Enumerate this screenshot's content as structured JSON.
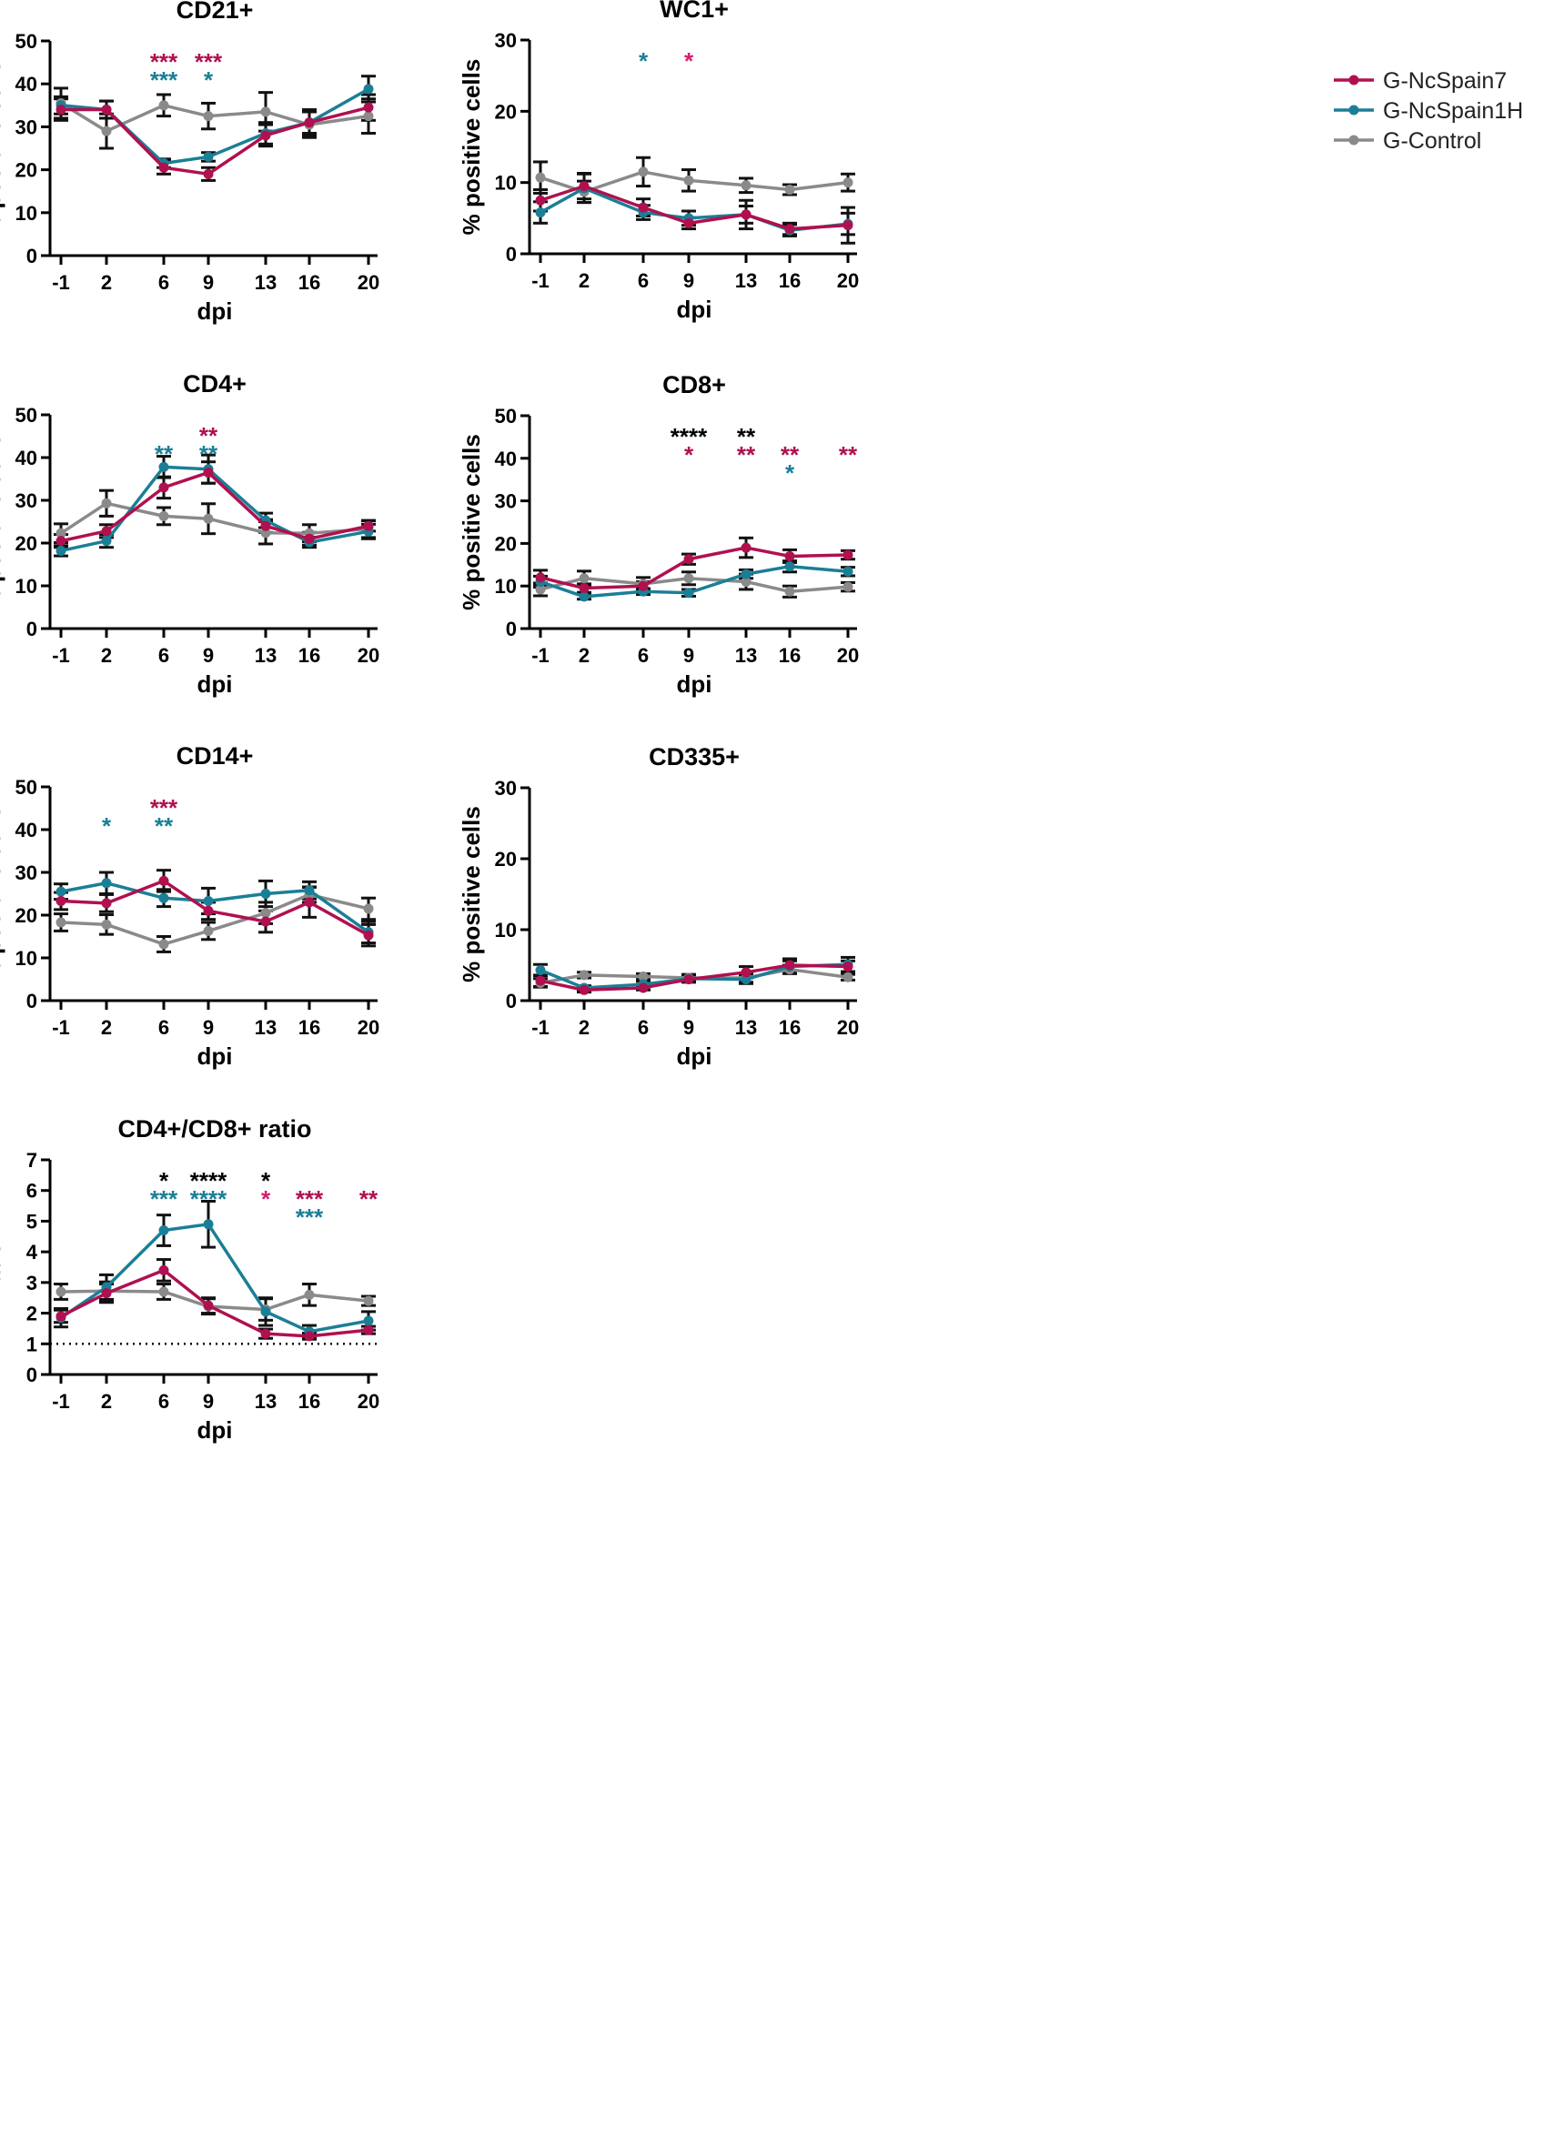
{
  "legend": [
    {
      "label": "G-NcSpain7",
      "color": "#b0104f"
    },
    {
      "label": "G-NcSpain1H",
      "color": "#1a7f96"
    },
    {
      "label": "G-Control",
      "color": "#8a8a8a"
    }
  ],
  "chart_data": [
    {
      "type": "line",
      "title": "CD21+",
      "xlabel": "dpi",
      "ylabel": "% positive cells",
      "ylim": [
        0,
        50
      ],
      "yticks": [
        0,
        10,
        20,
        30,
        40,
        50
      ],
      "x": [
        -1,
        2,
        6,
        9,
        13,
        16,
        20
      ],
      "xtick_labels": [
        "-1",
        "2",
        "6",
        "9",
        "13",
        "16",
        "20"
      ],
      "series": [
        {
          "name": "G-NcSpain7",
          "values": [
            34,
            34,
            20.5,
            19,
            28,
            31,
            34.5
          ],
          "errors": [
            2.5,
            2,
            1.5,
            1.5,
            2.5,
            3,
            3
          ]
        },
        {
          "name": "G-NcSpain1H",
          "values": [
            35,
            34,
            21.5,
            23,
            28.5,
            31,
            38.8
          ],
          "errors": [
            2,
            2,
            1,
            1,
            2.5,
            2.5,
            3
          ]
        },
        {
          "name": "G-Control",
          "values": [
            35.5,
            29,
            35,
            32.5,
            33.5,
            30.5,
            32.5
          ],
          "errors": [
            3.5,
            4,
            2.5,
            3,
            4.5,
            3,
            4
          ]
        }
      ],
      "annotations": [
        {
          "x": 6,
          "level": 0,
          "text": "***",
          "color": "#b0104f"
        },
        {
          "x": 6,
          "level": 1,
          "text": "***",
          "color": "#1a7f96"
        },
        {
          "x": 9,
          "level": 0,
          "text": "***",
          "color": "#b0104f"
        },
        {
          "x": 9,
          "level": 1,
          "text": "*",
          "color": "#1a7f96"
        }
      ]
    },
    {
      "type": "line",
      "title": "WC1+",
      "xlabel": "dpi",
      "ylabel": "% positive cells",
      "ylim": [
        0,
        30
      ],
      "yticks": [
        0,
        10,
        20,
        30
      ],
      "x": [
        -1,
        2,
        6,
        9,
        13,
        16,
        20
      ],
      "xtick_labels": [
        "-1",
        "2",
        "6",
        "9",
        "13",
        "16",
        "20"
      ],
      "series": [
        {
          "name": "G-NcSpain7",
          "values": [
            7.5,
            9.5,
            6.5,
            4.3,
            5.5,
            3.5,
            4
          ],
          "errors": [
            1.5,
            1.8,
            1.2,
            0.8,
            1.2,
            0.8,
            2.5
          ]
        },
        {
          "name": "G-NcSpain1H",
          "values": [
            5.8,
            9.2,
            5.8,
            5,
            5.5,
            3.3,
            4.2
          ],
          "errors": [
            1.5,
            2,
            1,
            1,
            2,
            0.8,
            1.5
          ]
        },
        {
          "name": "G-Control",
          "values": [
            10.7,
            8.7,
            11.5,
            10.3,
            9.6,
            9,
            10
          ],
          "errors": [
            2.2,
            1.5,
            2,
            1.5,
            1,
            0.7,
            1.2
          ]
        }
      ],
      "annotations": [
        {
          "x": 6,
          "level": 0,
          "text": "*",
          "color": "#1a7f96"
        },
        {
          "x": 9,
          "level": 0,
          "text": "*",
          "color": "#d61b6e"
        }
      ]
    },
    {
      "type": "line",
      "title": "CD4+",
      "xlabel": "dpi",
      "ylabel": "% positive cells",
      "ylim": [
        0,
        50
      ],
      "yticks": [
        0,
        10,
        20,
        30,
        40,
        50
      ],
      "x": [
        -1,
        2,
        6,
        9,
        13,
        16,
        20
      ],
      "xtick_labels": [
        "-1",
        "2",
        "6",
        "9",
        "13",
        "16",
        "20"
      ],
      "series": [
        {
          "name": "G-NcSpain7",
          "values": [
            20.5,
            22.8,
            33,
            36.5,
            24,
            21,
            24
          ],
          "errors": [
            1.5,
            1.5,
            2.5,
            2.5,
            1.5,
            1.5,
            1.2
          ]
        },
        {
          "name": "G-NcSpain1H",
          "values": [
            18.2,
            20.5,
            37.8,
            37.3,
            25.3,
            20.2,
            22.7
          ],
          "errors": [
            1.2,
            1.5,
            2.5,
            3.3,
            1.7,
            1.2,
            1.7
          ]
        },
        {
          "name": "G-Control",
          "values": [
            22.3,
            29.3,
            26.3,
            25.7,
            22.4,
            22.3,
            23.3
          ],
          "errors": [
            2.2,
            3,
            2,
            3.5,
            2.6,
            2,
            2
          ]
        }
      ],
      "annotations": [
        {
          "x": 6,
          "level": 1,
          "text": "**",
          "color": "#1a7f96"
        },
        {
          "x": 9,
          "level": 0,
          "text": "**",
          "color": "#b0104f"
        },
        {
          "x": 9,
          "level": 1,
          "text": "**",
          "color": "#1a7f96"
        }
      ]
    },
    {
      "type": "line",
      "title": "CD8+",
      "xlabel": "dpi",
      "ylabel": "% positive cells",
      "ylim": [
        0,
        50
      ],
      "yticks": [
        0,
        10,
        20,
        30,
        40,
        50
      ],
      "x": [
        -1,
        2,
        6,
        9,
        13,
        16,
        20
      ],
      "xtick_labels": [
        "-1",
        "2",
        "6",
        "9",
        "13",
        "16",
        "20"
      ],
      "series": [
        {
          "name": "G-NcSpain7",
          "values": [
            12,
            9.5,
            10,
            16.3,
            19,
            17,
            17.3
          ],
          "errors": [
            1.7,
            1,
            1,
            1.2,
            2.3,
            1.5,
            1
          ]
        },
        {
          "name": "G-NcSpain1H",
          "values": [
            11,
            7.5,
            8.7,
            8.4,
            12.8,
            14.6,
            13.4
          ],
          "errors": [
            1.3,
            0.6,
            0.7,
            0.8,
            1,
            1.3,
            1
          ]
        },
        {
          "name": "G-Control",
          "values": [
            9.2,
            11.8,
            10.5,
            11.8,
            11,
            8.7,
            9.8
          ],
          "errors": [
            1.5,
            1.7,
            1.5,
            1.5,
            1.8,
            1.3,
            1
          ]
        }
      ],
      "annotations": [
        {
          "x": 9,
          "level": 0,
          "text": "****",
          "color": "#000000"
        },
        {
          "x": 9,
          "level": 1,
          "text": "*",
          "color": "#b0104f"
        },
        {
          "x": 13,
          "level": 0,
          "text": "**",
          "color": "#000000"
        },
        {
          "x": 13,
          "level": 1,
          "text": "**",
          "color": "#b0104f"
        },
        {
          "x": 16,
          "level": 1,
          "text": "**",
          "color": "#b0104f"
        },
        {
          "x": 16,
          "level": 2,
          "text": "*",
          "color": "#1a7f96"
        },
        {
          "x": 20,
          "level": 1,
          "text": "**",
          "color": "#b0104f"
        }
      ]
    },
    {
      "type": "line",
      "title": "CD14+",
      "xlabel": "dpi",
      "ylabel": "% positive cells",
      "ylim": [
        0,
        50
      ],
      "yticks": [
        0,
        10,
        20,
        30,
        40,
        50
      ],
      "x": [
        -1,
        2,
        6,
        9,
        13,
        16,
        20
      ],
      "xtick_labels": [
        "-1",
        "2",
        "6",
        "9",
        "13",
        "16",
        "20"
      ],
      "series": [
        {
          "name": "G-NcSpain7",
          "values": [
            23.3,
            22.8,
            28,
            21,
            18.5,
            23,
            15.3
          ],
          "errors": [
            2,
            2,
            2.5,
            2,
            2.5,
            3.5,
            2.5
          ]
        },
        {
          "name": "G-NcSpain1H",
          "values": [
            25.5,
            27.5,
            24,
            23.3,
            25,
            25.8,
            16
          ],
          "errors": [
            1.8,
            2.5,
            2,
            3,
            3,
            2,
            2.5
          ]
        },
        {
          "name": "G-Control",
          "values": [
            18.3,
            17.8,
            13.2,
            16.3,
            20.5,
            24.8,
            21.5
          ],
          "errors": [
            2,
            2.3,
            1.8,
            2,
            2.5,
            1.8,
            2.5
          ]
        }
      ],
      "annotations": [
        {
          "x": 2,
          "level": 1,
          "text": "*",
          "color": "#1a7f96"
        },
        {
          "x": 6,
          "level": 0,
          "text": "***",
          "color": "#b0104f"
        },
        {
          "x": 6,
          "level": 1,
          "text": "**",
          "color": "#1a7f96"
        }
      ]
    },
    {
      "type": "line",
      "title": "CD335+",
      "xlabel": "dpi",
      "ylabel": "% positive cells",
      "ylim": [
        0,
        30
      ],
      "yticks": [
        0,
        10,
        20,
        30
      ],
      "x": [
        -1,
        2,
        6,
        9,
        13,
        16,
        20
      ],
      "xtick_labels": [
        "-1",
        "2",
        "6",
        "9",
        "13",
        "16",
        "20"
      ],
      "series": [
        {
          "name": "G-NcSpain7",
          "values": [
            2.8,
            1.5,
            1.8,
            3,
            4,
            5,
            4.8
          ],
          "errors": [
            0.8,
            0.3,
            0.3,
            0.4,
            0.8,
            0.9,
            0.8
          ]
        },
        {
          "name": "G-NcSpain1H",
          "values": [
            4.3,
            1.8,
            2.3,
            3.1,
            3,
            4.8,
            5.1
          ],
          "errors": [
            0.8,
            0.3,
            0.4,
            0.5,
            0.6,
            0.8,
            1
          ]
        },
        {
          "name": "G-Control",
          "values": [
            2.5,
            3.6,
            3.4,
            3.2,
            3.2,
            4.4,
            3.3
          ],
          "errors": [
            0.6,
            0.4,
            0.4,
            0.5,
            0.6,
            0.6,
            0.4
          ]
        }
      ],
      "annotations": []
    },
    {
      "type": "line",
      "title": "CD4+/CD8+ ratio",
      "xlabel": "dpi",
      "ylabel": "ratio",
      "ylim": [
        0,
        7
      ],
      "yticks": [
        0,
        1,
        2,
        3,
        4,
        5,
        6,
        7
      ],
      "x": [
        -1,
        2,
        6,
        9,
        13,
        16,
        20
      ],
      "xtick_labels": [
        "-1",
        "2",
        "6",
        "9",
        "13",
        "16",
        "20"
      ],
      "reference_line": 1,
      "series": [
        {
          "name": "G-NcSpain7",
          "values": [
            1.9,
            2.65,
            3.4,
            2.25,
            1.33,
            1.25,
            1.45
          ],
          "errors": [
            0.2,
            0.3,
            0.35,
            0.25,
            0.15,
            0.1,
            0.12
          ]
        },
        {
          "name": "G-NcSpain1H",
          "values": [
            1.85,
            2.85,
            4.7,
            4.9,
            2.05,
            1.4,
            1.75
          ],
          "errors": [
            0.3,
            0.4,
            0.5,
            0.75,
            0.45,
            0.2,
            0.3
          ]
        },
        {
          "name": "G-Control",
          "values": [
            2.7,
            2.72,
            2.7,
            2.22,
            2.12,
            2.6,
            2.4
          ],
          "errors": [
            0.25,
            0.3,
            0.25,
            0.25,
            0.35,
            0.35,
            0.15
          ]
        }
      ],
      "annotations": [
        {
          "x": 6,
          "level": 0,
          "text": "*",
          "color": "#000000"
        },
        {
          "x": 6,
          "level": 1,
          "text": "***",
          "color": "#1a7f96"
        },
        {
          "x": 9,
          "level": 0,
          "text": "****",
          "color": "#000000"
        },
        {
          "x": 9,
          "level": 1,
          "text": "****",
          "color": "#1a7f96"
        },
        {
          "x": 13,
          "level": 0,
          "text": "*",
          "color": "#000000"
        },
        {
          "x": 13,
          "level": 1,
          "text": "*",
          "color": "#d61b6e"
        },
        {
          "x": 16,
          "level": 1,
          "text": "***",
          "color": "#b0104f"
        },
        {
          "x": 16,
          "level": 2,
          "text": "***",
          "color": "#1a7f96"
        },
        {
          "x": 20,
          "level": 1,
          "text": "**",
          "color": "#b0104f"
        }
      ]
    }
  ]
}
